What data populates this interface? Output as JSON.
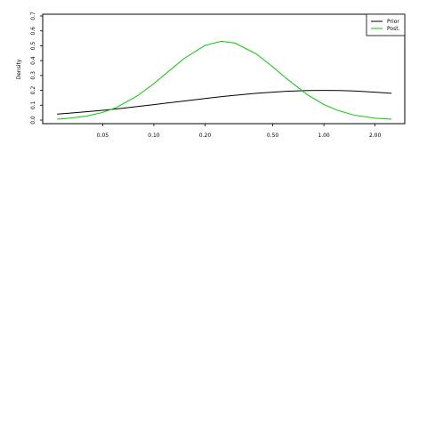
{
  "chart_data": {
    "type": "line",
    "y_label": "Density",
    "log_x": true,
    "x": [
      0.027,
      0.03,
      0.04,
      0.05,
      0.06,
      0.08,
      0.1,
      0.12,
      0.15,
      0.2,
      0.25,
      0.3,
      0.4,
      0.5,
      0.6,
      0.8,
      1.0,
      1.2,
      1.5,
      2.0,
      2.5
    ],
    "series": [
      {
        "name": "Prior",
        "color": "#000000",
        "values": [
          0.04,
          0.044,
          0.056,
          0.066,
          0.075,
          0.091,
          0.104,
          0.115,
          0.128,
          0.145,
          0.158,
          0.167,
          0.18,
          0.188,
          0.194,
          0.199,
          0.2,
          0.199,
          0.196,
          0.188,
          0.18
        ]
      },
      {
        "name": "Post.",
        "color": "#00cc00",
        "values": [
          0.006,
          0.0095,
          0.026,
          0.052,
          0.084,
          0.163,
          0.245,
          0.321,
          0.413,
          0.503,
          0.53,
          0.518,
          0.445,
          0.358,
          0.281,
          0.17,
          0.104,
          0.066,
          0.034,
          0.013,
          0.006
        ]
      }
    ],
    "xlim": [
      0.0222,
      2.99
    ],
    "xticks": [
      0.05,
      {
        "value": 0.1,
        "label": "0.10"
      },
      {
        "value": 0.2,
        "label": "0.20"
      },
      {
        "value": 0.5,
        "label": "0.50"
      },
      {
        "value": 1,
        "label": "1.00"
      },
      {
        "value": 2,
        "label": "2.00"
      }
    ],
    "ylim": [
      -0.024,
      0.712
    ],
    "yticks": [
      {
        "value": 0,
        "label": "0.0"
      },
      0.1,
      0.2,
      0.3,
      0.4,
      0.5,
      0.6,
      0.7
    ],
    "legend": "top-right"
  }
}
